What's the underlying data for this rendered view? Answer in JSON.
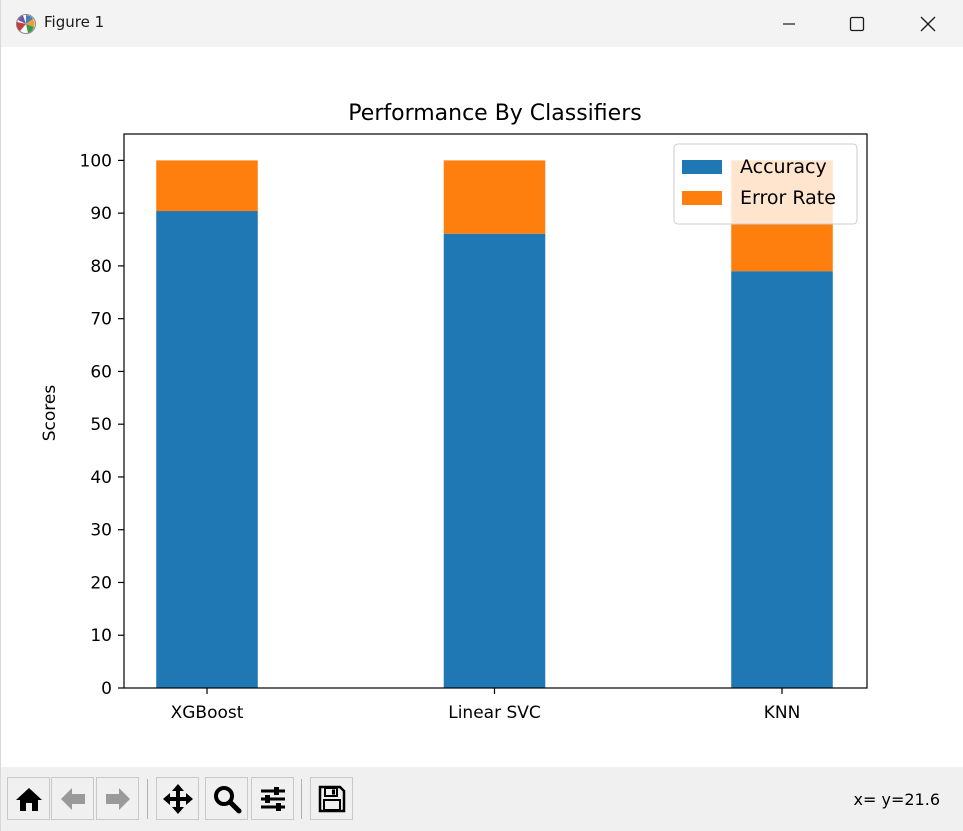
{
  "window": {
    "title": "Figure 1",
    "app_icon": "matplotlib-logo-icon"
  },
  "toolbar": {
    "buttons": [
      {
        "name": "home-button",
        "icon": "home-icon"
      },
      {
        "name": "back-button",
        "icon": "arrow-left-icon"
      },
      {
        "name": "forward-button",
        "icon": "arrow-right-icon"
      },
      {
        "name": "pan-button",
        "icon": "move-arrows-icon"
      },
      {
        "name": "zoom-button",
        "icon": "magnifier-icon"
      },
      {
        "name": "configure-subplots-button",
        "icon": "sliders-icon"
      },
      {
        "name": "save-button",
        "icon": "floppy-disk-icon"
      }
    ],
    "coordinates": "x= y=21.6"
  },
  "colors": {
    "accuracy": "#1f77b4",
    "error_rate": "#ff7f0e"
  },
  "chart_data": {
    "type": "bar",
    "stacked": true,
    "title": "Performance By Classifiers",
    "xlabel": "",
    "ylabel": "Scores",
    "categories": [
      "XGBoost",
      "Linear SVC",
      "KNN"
    ],
    "series": [
      {
        "name": "Accuracy",
        "values": [
          90.4,
          86.1,
          79.0
        ]
      },
      {
        "name": "Error Rate",
        "values": [
          9.6,
          13.9,
          21.0
        ]
      }
    ],
    "ylim": [
      0,
      105
    ],
    "yticks": [
      0,
      10,
      20,
      30,
      40,
      50,
      60,
      70,
      80,
      90,
      100
    ],
    "grid": false,
    "legend_position": "top-right"
  }
}
